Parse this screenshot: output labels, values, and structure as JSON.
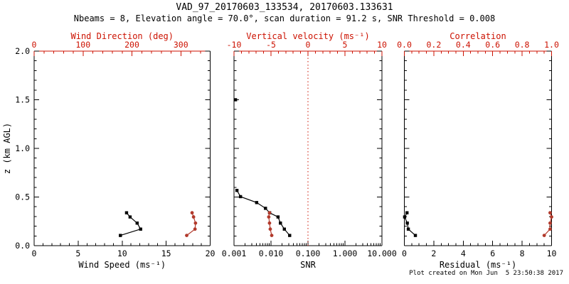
{
  "title": "VAD_97_20170603_133534, 20170603.133631",
  "subtitle": "Nbeams = 8, Elevation angle = 70.0°, scan duration = 91.2 s, SNR Threshold = 0.008",
  "footer": "Plot created on Mon Jun  5 23:50:38 2017",
  "colors": {
    "background": "#ffffff",
    "axis_black": "#000000",
    "axis_red": "#cc1100",
    "data_red": "#b23a2c"
  },
  "chart_data": {
    "type": "line",
    "y_axis": {
      "label": "z (km AGL)",
      "range": [
        0,
        2
      ],
      "majors": [
        {
          "v": 0.0,
          "t": "0.0"
        },
        {
          "v": 0.5,
          "t": "0.5"
        },
        {
          "v": 1.0,
          "t": "1.0"
        },
        {
          "v": 1.5,
          "t": "1.5"
        },
        {
          "v": 2.0,
          "t": "2.0"
        }
      ],
      "minor_step": 0.1
    },
    "panels": [
      {
        "name": "wind",
        "bottom_axis": {
          "label": "Wind Speed (ms⁻¹)",
          "scale": "linear",
          "range": [
            0,
            20
          ],
          "majors": [
            {
              "v": 0,
              "t": "0"
            },
            {
              "v": 5,
              "t": "5"
            },
            {
              "v": 10,
              "t": "10"
            },
            {
              "v": 15,
              "t": "15"
            },
            {
              "v": 20,
              "t": "20"
            }
          ],
          "minor_step": 1
        },
        "top_axis": {
          "label": "Wind Direction (deg)",
          "scale": "linear",
          "range": [
            0,
            360
          ],
          "majors": [
            {
              "v": 0,
              "t": "0"
            },
            {
              "v": 100,
              "t": "100"
            },
            {
              "v": 200,
              "t": "200"
            },
            {
              "v": 300,
              "t": "300"
            }
          ],
          "minor_step": 20
        },
        "series": [
          {
            "name": "wind-speed",
            "axis": "bottom",
            "color": "black",
            "marker": "square",
            "z": [
              0.105,
              0.17,
              0.232,
              0.295,
              0.338
            ],
            "values": [
              9.8,
              12.1,
              11.7,
              10.9,
              10.5
            ]
          },
          {
            "name": "wind-direction",
            "axis": "top",
            "color": "red",
            "marker": "circle",
            "z": [
              0.105,
              0.17,
              0.232,
              0.295,
              0.338
            ],
            "values": [
              312,
              329,
              330,
              326,
              323
            ]
          }
        ]
      },
      {
        "name": "snr",
        "bottom_axis": {
          "label": "SNR",
          "scale": "log",
          "range": [
            0.001,
            10
          ],
          "majors": [
            {
              "v": 0.001,
              "t": "0.001"
            },
            {
              "v": 0.01,
              "t": "0.010"
            },
            {
              "v": 0.1,
              "t": "0.100"
            },
            {
              "v": 1,
              "t": "1.000"
            },
            {
              "v": 10,
              "t": "10.000"
            }
          ]
        },
        "top_axis": {
          "label": "Vertical velocity (ms⁻¹)",
          "scale": "linear",
          "range": [
            -10,
            10
          ],
          "majors": [
            {
              "v": -10,
              "t": "-10"
            },
            {
              "v": -5,
              "t": "-5"
            },
            {
              "v": 0,
              "t": "0"
            },
            {
              "v": 5,
              "t": "5"
            },
            {
              "v": 10,
              "t": "10"
            }
          ],
          "minor_step": 1
        },
        "reference_line": {
          "axis": "top",
          "value": 0,
          "style": "dotted",
          "color": "red"
        },
        "series": [
          {
            "name": "snr-profile",
            "axis": "bottom",
            "color": "black",
            "marker": "square",
            "z": [
              0.105,
              0.17,
              0.232,
              0.295,
              0.338,
              0.384,
              0.443,
              0.504,
              0.568
            ],
            "values": [
              0.032,
              0.023,
              0.018,
              0.0155,
              0.0092,
              0.0071,
              0.0041,
              0.0015,
              0.0012
            ]
          },
          {
            "name": "snr-outlier",
            "axis": "bottom",
            "color": "black",
            "marker": "square",
            "line": false,
            "z": [
              1.5
            ],
            "values": [
              0.0011
            ]
          },
          {
            "name": "vertical-velocity",
            "axis": "top",
            "color": "red",
            "marker": "circle",
            "z": [
              0.105,
              0.17,
              0.232,
              0.295,
              0.338
            ],
            "values": [
              -4.9,
              -5.1,
              -5.2,
              -5.3,
              -5.2
            ]
          }
        ]
      },
      {
        "name": "residual",
        "bottom_axis": {
          "label": "Residual (ms⁻¹)",
          "scale": "linear",
          "range": [
            0,
            10
          ],
          "majors": [
            {
              "v": 0,
              "t": "0"
            },
            {
              "v": 2,
              "t": "2"
            },
            {
              "v": 4,
              "t": "4"
            },
            {
              "v": 6,
              "t": "6"
            },
            {
              "v": 8,
              "t": "8"
            },
            {
              "v": 10,
              "t": "10"
            }
          ],
          "minor_step": 0.5
        },
        "top_axis": {
          "label": "Correlation",
          "scale": "linear",
          "range": [
            0,
            1
          ],
          "majors": [
            {
              "v": 0,
              "t": "0.0"
            },
            {
              "v": 0.2,
              "t": "0.2"
            },
            {
              "v": 0.4,
              "t": "0.4"
            },
            {
              "v": 0.6,
              "t": "0.6"
            },
            {
              "v": 0.8,
              "t": "0.8"
            },
            {
              "v": 1,
              "t": "1.0"
            }
          ],
          "minor_step": 0.05
        },
        "series": [
          {
            "name": "residual",
            "axis": "bottom",
            "color": "black",
            "marker": "square",
            "z": [
              0.105,
              0.17,
              0.232,
              0.295,
              0.338
            ],
            "values": [
              0.75,
              0.27,
              0.2,
              0.02,
              0.18
            ]
          },
          {
            "name": "correlation",
            "axis": "top",
            "color": "red",
            "marker": "circle",
            "z": [
              0.105,
              0.17,
              0.232,
              0.295,
              0.338
            ],
            "values": [
              0.95,
              0.99,
              0.99,
              1.0,
              0.99
            ]
          }
        ]
      }
    ]
  }
}
